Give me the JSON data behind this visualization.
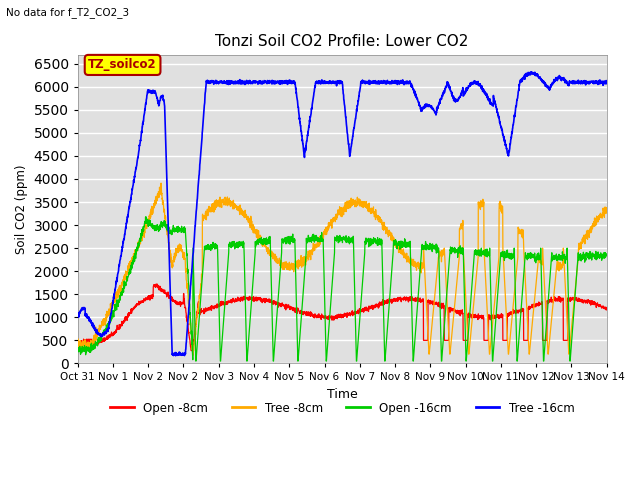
{
  "title": "Tonzi Soil CO2 Profile: Lower CO2",
  "subtitle": "No data for f_T2_CO2_3",
  "xlabel": "Time",
  "ylabel": "Soil CO2 (ppm)",
  "ylim": [
    0,
    6700
  ],
  "yticks": [
    0,
    500,
    1000,
    1500,
    2000,
    2500,
    3000,
    3500,
    4000,
    4500,
    5000,
    5500,
    6000,
    6500
  ],
  "legend_box_label": "TZ_soilco2",
  "legend_box_color": "#ffff00",
  "legend_box_text_color": "#aa0000",
  "lines": [
    {
      "label": "Open -8cm",
      "color": "#ff0000"
    },
    {
      "label": "Tree -8cm",
      "color": "#ffaa00"
    },
    {
      "label": "Open -16cm",
      "color": "#00cc00"
    },
    {
      "label": "Tree -16cm",
      "color": "#0000ff"
    }
  ],
  "x_tick_labels": [
    "Oct 31",
    "Nov 1",
    "Nov 2",
    "Nov 2",
    "Nov 3",
    "Nov 4",
    "Nov 5",
    "Nov 6",
    "Nov 7",
    "Nov 8",
    "Nov 9",
    "Nov 10",
    "Nov 11",
    "Nov 12",
    "Nov 13",
    "Nov 14"
  ],
  "background_color": "#ffffff",
  "plot_bg_color": "#e0e0e0",
  "grid_color": "#ffffff"
}
